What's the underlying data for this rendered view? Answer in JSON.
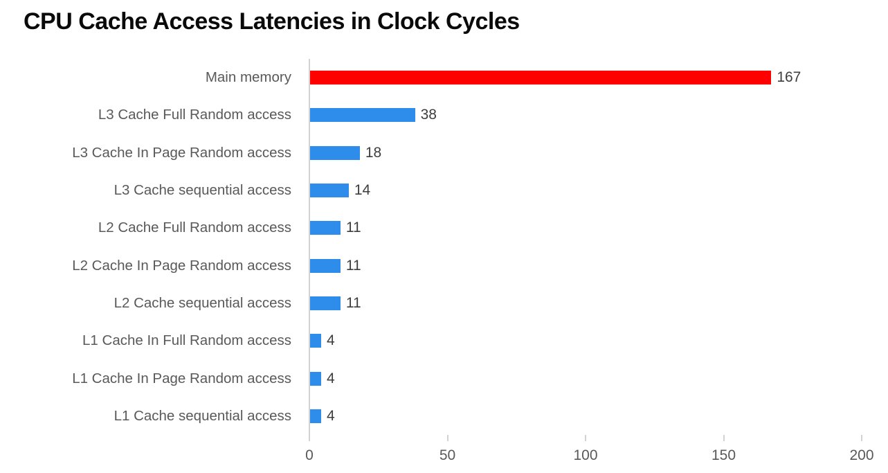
{
  "title": "CPU Cache Access Latencies in Clock Cycles",
  "chart_data": {
    "type": "bar",
    "orientation": "horizontal",
    "title": "CPU Cache Access Latencies in Clock Cycles",
    "categories": [
      "Main memory",
      "L3 Cache Full Random access",
      "L3 Cache In Page Random access",
      "L3 Cache sequential access",
      "L2 Cache Full Random access",
      "L2 Cache In Page Random access",
      "L2 Cache sequential access",
      "L1 Cache In Full Random access",
      "L1 Cache In Page Random access",
      "L1 Cache sequential access"
    ],
    "values": [
      167,
      38,
      18,
      14,
      11,
      11,
      11,
      4,
      4,
      4
    ],
    "value_labels": [
      "167",
      "38",
      "18",
      "14",
      "11",
      "11",
      "11",
      "4",
      "4",
      "4"
    ],
    "bar_colors": [
      "#fe0000",
      "#2e8ceb",
      "#2e8ceb",
      "#2e8ceb",
      "#2e8ceb",
      "#2e8ceb",
      "#2e8ceb",
      "#2e8ceb",
      "#2e8ceb",
      "#2e8ceb"
    ],
    "xlabel": "",
    "ylabel": "",
    "xlim": [
      0,
      200
    ],
    "x_ticks": [
      "0",
      "50",
      "100",
      "150",
      "200"
    ],
    "x_tick_values": [
      0,
      50,
      100,
      150,
      200
    ],
    "grid": "off",
    "legend": "none",
    "value_label_position": "outside-end",
    "colors": {
      "highlight_bar": "#fe0000",
      "default_bar": "#2e8ceb",
      "category_label_text": "#595959",
      "value_label_text": "#3d3d3d",
      "tick_label_text": "#595959",
      "axis_line": "#d2d2d2",
      "title_text": "#0a0a0a",
      "background": "#ffffff"
    }
  }
}
